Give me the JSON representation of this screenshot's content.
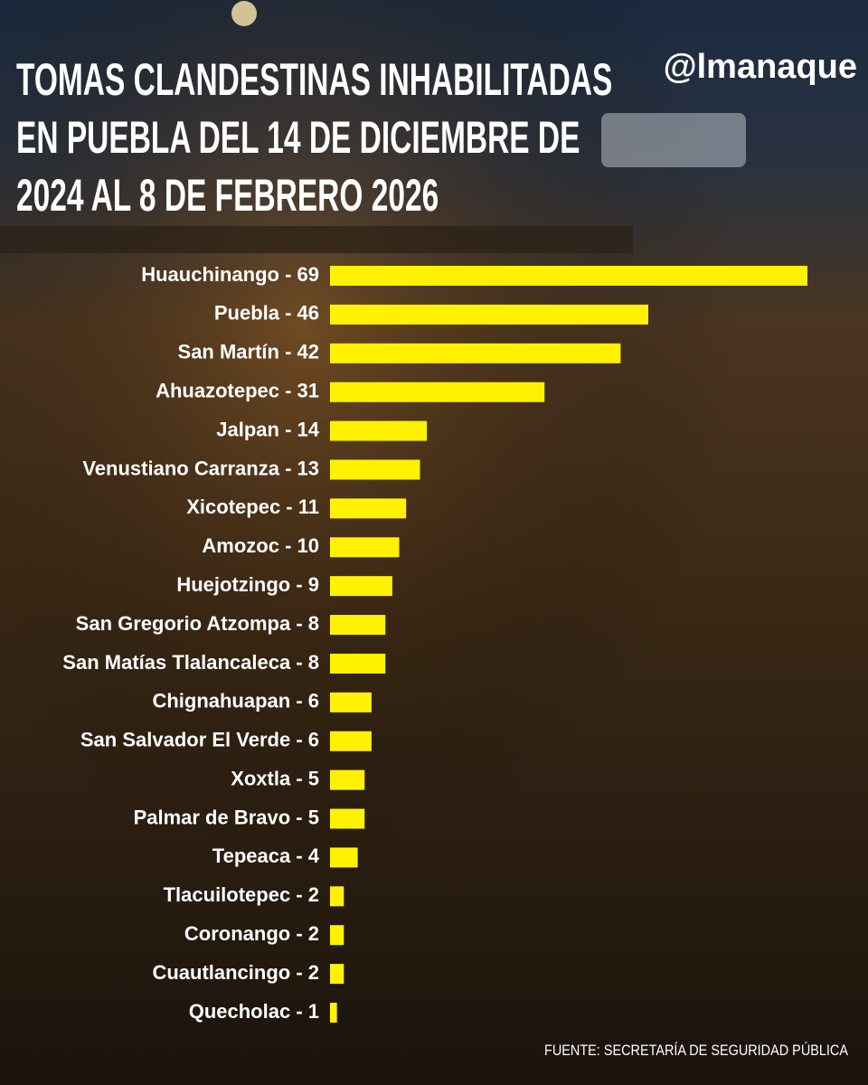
{
  "chart_data": {
    "type": "bar",
    "orientation": "horizontal",
    "title": [
      "TOMAS CLANDESTINAS INHABILITADAS",
      "EN PUEBLA DEL 14 DE DICIEMBRE DE",
      "2024  AL 8 DE FEBRERO 2026"
    ],
    "brand": "@lmanaque",
    "source": "FUENTE: SECRETARÍA DE SEGURIDAD PÚBLICA",
    "categories": [
      "Huauchinango - 69",
      "Puebla - 46",
      "San Martín - 42",
      "Ahuazotepec - 31",
      "Jalpan - 14",
      "Venustiano Carranza - 13",
      "Xicotepec - 11",
      "Amozoc - 10",
      "Huejotzingo - 9",
      "San Gregorio Atzompa - 8",
      "San Matías Tlalancaleca - 8",
      "Chignahuapan - 6",
      "San Salvador El Verde - 6",
      "Xoxtla - 5",
      "Palmar de Bravo - 5",
      "Tepeaca - 4",
      "Tlacuilotepec - 2",
      "Coronango - 2",
      "Cuautlancingo - 2",
      "Quecholac - 1"
    ],
    "values": [
      69,
      46,
      42,
      31,
      14,
      13,
      11,
      10,
      9,
      8,
      8,
      6,
      6,
      5,
      5,
      4,
      2,
      2,
      2,
      1
    ],
    "color": "#fff200"
  }
}
